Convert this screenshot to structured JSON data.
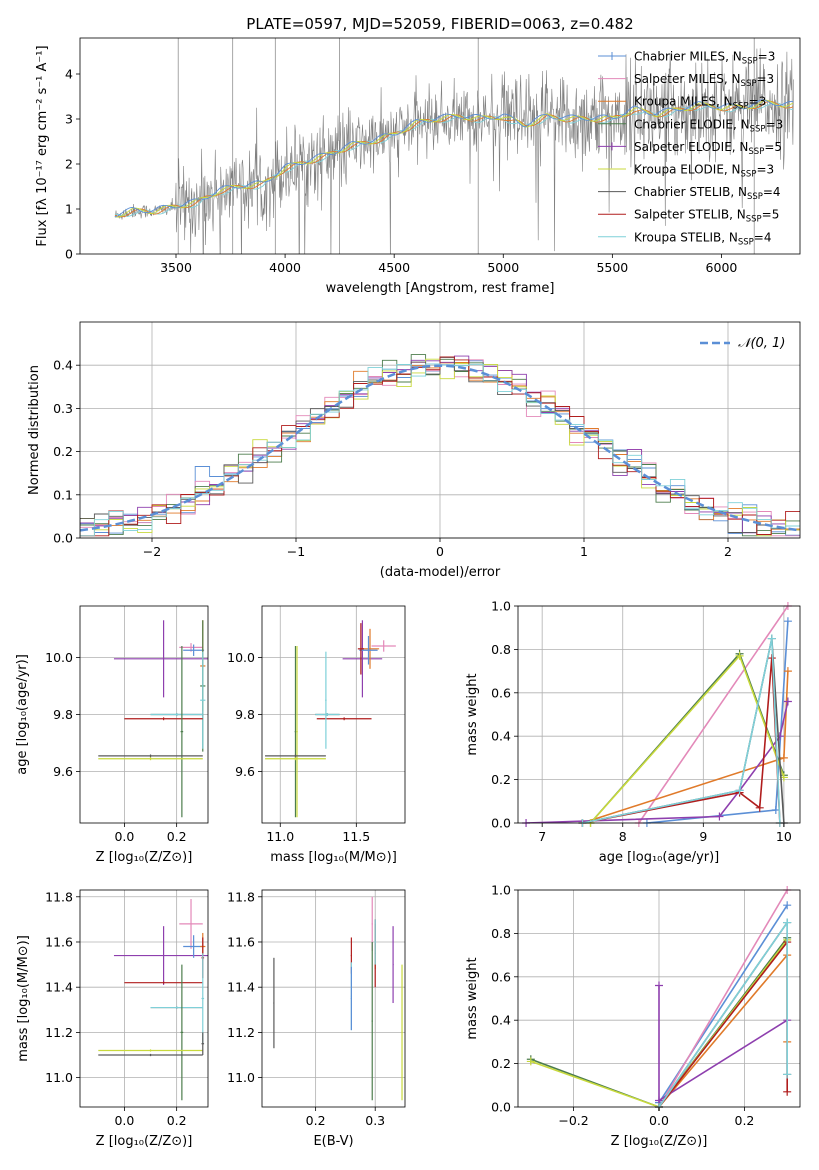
{
  "figure": {
    "title": "PLATE=0597, MJD=52059, FIBERID=0063, z=0.482"
  },
  "colors": {
    "chabrier_miles": "#5b8fd6",
    "salpeter_miles": "#e389b9",
    "kroupa_miles": "#e07a2a",
    "chabrier_elodie": "#4d7d4d",
    "salpeter_elodie": "#8e3fae",
    "kroupa_elodie": "#c8d93c",
    "chabrier_stelib": "#5a5a5a",
    "salpeter_stelib": "#b01d1d",
    "kroupa_stelib": "#7fd0d8",
    "data_spectrum": "#808080",
    "normal_curve": "#5b8fd6"
  },
  "legend_spectrum": [
    {
      "base": "Chabrier MILES, N",
      "sub": "SSP",
      "tail": "=3",
      "color_key": "chabrier_miles",
      "marker": true
    },
    {
      "base": "Salpeter MILES, N",
      "sub": "SSP",
      "tail": "=3",
      "color_key": "salpeter_miles",
      "marker": false
    },
    {
      "base": "Kroupa MILES, N",
      "sub": "SSP",
      "tail": "=3",
      "color_key": "kroupa_miles",
      "marker": false
    },
    {
      "base": "Chabrier ELODIE, N",
      "sub": "SSP",
      "tail": "=3",
      "color_key": "chabrier_elodie",
      "marker": false
    },
    {
      "base": "Salpeter ELODIE, N",
      "sub": "SSP",
      "tail": "=5",
      "color_key": "salpeter_elodie",
      "marker": true
    },
    {
      "base": "Kroupa ELODIE, N",
      "sub": "SSP",
      "tail": "=3",
      "color_key": "kroupa_elodie",
      "marker": false
    },
    {
      "base": "Chabrier STELIB, N",
      "sub": "SSP",
      "tail": "=4",
      "color_key": "chabrier_stelib",
      "marker": false
    },
    {
      "base": "Salpeter STELIB, N",
      "sub": "SSP",
      "tail": "=5",
      "color_key": "salpeter_stelib",
      "marker": false
    },
    {
      "base": "Kroupa STELIB, N",
      "sub": "SSP",
      "tail": "=4",
      "color_key": "kroupa_stelib",
      "marker": false
    }
  ],
  "chart_data": [
    {
      "id": "spectrum",
      "type": "line",
      "xlabel": "wavelength [Angstrom, rest frame]",
      "ylabel": "Flux [fλ 10⁻¹⁷ erg cm⁻² s⁻¹ A⁻¹]",
      "xlim": [
        3060,
        6360
      ],
      "ylim": [
        0,
        4.8
      ],
      "xticks": [
        3500,
        4000,
        4500,
        5000,
        5500,
        6000
      ],
      "yticks": [
        0,
        1,
        2,
        3,
        4
      ],
      "continuum": {
        "x": [
          3220,
          3300,
          3400,
          3500,
          3600,
          3700,
          3800,
          3900,
          4000,
          4100,
          4200,
          4300,
          4400,
          4500,
          4600,
          4700,
          4800,
          4900,
          5000,
          5100,
          5200,
          5300,
          5400,
          5500,
          5600,
          5700,
          5800,
          5900,
          6000,
          6100,
          6200,
          6330
        ],
        "y": [
          0.85,
          0.95,
          0.95,
          1.05,
          1.15,
          1.4,
          1.5,
          1.55,
          1.9,
          2.05,
          2.2,
          2.4,
          2.5,
          2.65,
          2.9,
          3.0,
          3.05,
          3.0,
          3.05,
          2.85,
          3.05,
          3.0,
          3.0,
          3.0,
          3.2,
          3.1,
          3.2,
          3.3,
          3.25,
          3.25,
          3.35,
          3.3
        ]
      },
      "data_xrange": [
        3220,
        6330
      ],
      "sky_line_x": [
        3510,
        3760,
        3955,
        4250,
        4885,
        6150
      ]
    },
    {
      "id": "residuals",
      "type": "histogram",
      "xlabel": "(data-model)/error",
      "ylabel": "Normed distribution",
      "xlim": [
        -2.5,
        2.5
      ],
      "ylim": [
        0,
        0.5
      ],
      "xticks": [
        -2,
        -1,
        0,
        1,
        2
      ],
      "yticks": [
        0.0,
        0.1,
        0.2,
        0.3,
        0.4
      ],
      "bin_width": 0.1,
      "curve_label": "𝒩(0, 1)"
    },
    {
      "id": "age_vs_Z",
      "type": "errorbar",
      "xlabel": "Z [log₁₀(Z/Z⊙)]",
      "ylabel": "age  [log₁₀(age/yr)]",
      "xlim": [
        -0.17,
        0.32
      ],
      "ylim": [
        9.42,
        10.18
      ],
      "xticks": [
        0.0,
        0.2
      ],
      "yticks": [
        9.6,
        9.8,
        10.0
      ],
      "points": [
        {
          "series": "salpeter_elodie",
          "x": 0.15,
          "xerr": 0.19,
          "y": 9.995,
          "yerr": 0.135
        },
        {
          "series": "salpeter_miles",
          "x": 0.255,
          "xerr": 0.045,
          "y": 10.035,
          "yerr": 0.015
        },
        {
          "series": "chabrier_miles",
          "x": 0.265,
          "xerr": 0.04,
          "y": 10.025,
          "yerr": 0.02
        },
        {
          "series": "kroupa_miles",
          "x": 0.3,
          "xerr": 0.01,
          "y": 9.97,
          "yerr": 0.16
        },
        {
          "series": "chabrier_elodie",
          "x": 0.3,
          "xerr": 0.01,
          "y": 9.9,
          "yerr": 0.23
        },
        {
          "series": "kroupa_stelib",
          "x": 0.3,
          "xerr": 0.01,
          "y": 9.85,
          "yerr": 0.17
        },
        {
          "series": "chabrier_stelib",
          "x": 0.2,
          "xerr": 0.1,
          "y": 9.8,
          "yerr": 0.005
        },
        {
          "series": "kroupa_stelib",
          "x": 0.2,
          "xerr": 0.1,
          "y": 9.8,
          "yerr": 0.005
        },
        {
          "series": "salpeter_stelib",
          "x": 0.15,
          "xerr": 0.15,
          "y": 9.785,
          "yerr": 0.005
        },
        {
          "series": "chabrier_elodie",
          "x": 0.22,
          "xerr": 0.005,
          "y": 9.74,
          "yerr": 0.3
        },
        {
          "series": "chabrier_stelib",
          "x": 0.1,
          "xerr": 0.2,
          "y": 9.655,
          "yerr": 0.005
        },
        {
          "series": "kroupa_elodie",
          "x": 0.1,
          "xerr": 0.2,
          "y": 9.645,
          "yerr": 0.005
        }
      ]
    },
    {
      "id": "age_vs_mass",
      "type": "errorbar",
      "xlabel": "mass [log₁₀(M/M⊙)]",
      "ylabel": "",
      "xlim": [
        10.88,
        11.82
      ],
      "ylim": [
        9.42,
        10.18
      ],
      "xticks": [
        11.0,
        11.5
      ],
      "yticks": [
        9.6,
        9.8,
        10.0
      ],
      "points": [
        {
          "series": "salpeter_elodie",
          "x": 11.54,
          "xerr": 0.13,
          "y": 9.995,
          "yerr": 0.135
        },
        {
          "series": "salpeter_miles",
          "x": 11.68,
          "xerr": 0.08,
          "y": 10.04,
          "yerr": 0.02
        },
        {
          "series": "kroupa_miles",
          "x": 11.59,
          "xerr": 0.06,
          "y": 10.03,
          "yerr": 0.07
        },
        {
          "series": "chabrier_miles",
          "x": 11.58,
          "xerr": 0.06,
          "y": 10.025,
          "yerr": 0.05
        },
        {
          "series": "salpeter_stelib",
          "x": 11.53,
          "xerr": 0.02,
          "y": 10.03,
          "yerr": 0.09
        },
        {
          "series": "chabrier_stelib",
          "x": 11.31,
          "xerr": 0.08,
          "y": 9.8,
          "yerr": 0.005
        },
        {
          "series": "kroupa_stelib",
          "x": 11.31,
          "xerr": 0.08,
          "y": 9.8,
          "yerr": 0.005
        },
        {
          "series": "salpeter_stelib",
          "x": 11.42,
          "xerr": 0.18,
          "y": 9.785,
          "yerr": 0.005
        },
        {
          "series": "chabrier_elodie",
          "x": 11.1,
          "xerr": 0.005,
          "y": 9.74,
          "yerr": 0.3
        },
        {
          "series": "kroupa_elodie",
          "x": 11.11,
          "xerr": 0.005,
          "y": 9.74,
          "yerr": 0.3
        },
        {
          "series": "chabrier_stelib",
          "x": 11.1,
          "xerr": 0.2,
          "y": 9.655,
          "yerr": 0.005
        },
        {
          "series": "kroupa_elodie",
          "x": 11.1,
          "xerr": 0.2,
          "y": 9.645,
          "yerr": 0.005
        },
        {
          "series": "kroupa_stelib",
          "x": 11.3,
          "xerr": 0.005,
          "y": 9.85,
          "yerr": 0.17
        }
      ]
    },
    {
      "id": "mass_weight_vs_age",
      "type": "line",
      "xlabel": "age  [log₁₀(age/yr)]",
      "ylabel": "mass weight",
      "xlim": [
        6.7,
        10.2
      ],
      "ylim": [
        0,
        1.0
      ],
      "xticks": [
        7,
        8,
        9,
        10
      ],
      "yticks": [
        0.0,
        0.2,
        0.4,
        0.6,
        0.8,
        1.0
      ],
      "series": [
        {
          "series": "chabrier_miles",
          "x": [
            8.3,
            9.9,
            10.05
          ],
          "y": [
            0.0,
            0.06,
            0.93
          ]
        },
        {
          "series": "salpeter_miles",
          "x": [
            8.2,
            10.05
          ],
          "y": [
            0.0,
            1.0
          ]
        },
        {
          "series": "kroupa_miles",
          "x": [
            7.5,
            10.0,
            10.05
          ],
          "y": [
            0.0,
            0.3,
            0.7
          ]
        },
        {
          "series": "chabrier_elodie",
          "x": [
            7.6,
            9.45,
            10.0
          ],
          "y": [
            0.0,
            0.78,
            0.22
          ]
        },
        {
          "series": "salpeter_elodie",
          "x": [
            6.8,
            9.2,
            9.45,
            9.95,
            10.05
          ],
          "y": [
            0.0,
            0.03,
            0.15,
            0.4,
            0.56
          ]
        },
        {
          "series": "kroupa_elodie",
          "x": [
            7.6,
            9.45,
            10.0
          ],
          "y": [
            0.0,
            0.77,
            0.21
          ]
        },
        {
          "series": "chabrier_stelib",
          "x": [
            7.5,
            9.45,
            9.85,
            10.0
          ],
          "y": [
            0.0,
            0.15,
            0.85,
            0.0
          ]
        },
        {
          "series": "salpeter_stelib",
          "x": [
            7.5,
            9.45,
            9.7,
            9.85,
            9.95
          ],
          "y": [
            0.0,
            0.14,
            0.07,
            0.76,
            0.0
          ]
        },
        {
          "series": "kroupa_stelib",
          "x": [
            7.5,
            9.45,
            9.85,
            9.95
          ],
          "y": [
            0.0,
            0.15,
            0.85,
            0.0
          ]
        }
      ]
    },
    {
      "id": "mass_vs_Z",
      "type": "errorbar",
      "xlabel": "Z [log₁₀(Z/Z⊙)]",
      "ylabel": "mass [log₁₀(M/M⊙)]",
      "xlim": [
        -0.17,
        0.32
      ],
      "ylim": [
        10.87,
        11.83
      ],
      "xticks": [
        0.0,
        0.2
      ],
      "yticks": [
        11.0,
        11.2,
        11.4,
        11.6,
        11.8
      ],
      "points": [
        {
          "series": "salpeter_elodie",
          "x": 0.15,
          "xerr": 0.19,
          "y": 11.54,
          "yerr": 0.13
        },
        {
          "series": "salpeter_miles",
          "x": 0.255,
          "xerr": 0.045,
          "y": 11.68,
          "yerr": 0.11
        },
        {
          "series": "chabrier_miles",
          "x": 0.265,
          "xerr": 0.04,
          "y": 11.58,
          "yerr": 0.05
        },
        {
          "series": "kroupa_miles",
          "x": 0.3,
          "xerr": 0.01,
          "y": 11.58,
          "yerr": 0.06
        },
        {
          "series": "salpeter_stelib",
          "x": 0.3,
          "xerr": 0.005,
          "y": 11.53,
          "yerr": 0.09
        },
        {
          "series": "salpeter_stelib",
          "x": 0.15,
          "xerr": 0.15,
          "y": 11.42,
          "yerr": 0.005
        },
        {
          "series": "chabrier_stelib",
          "x": 0.2,
          "xerr": 0.1,
          "y": 11.31,
          "yerr": 0.005
        },
        {
          "series": "kroupa_stelib",
          "x": 0.2,
          "xerr": 0.1,
          "y": 11.31,
          "yerr": 0.005
        },
        {
          "series": "kroupa_stelib",
          "x": 0.3,
          "xerr": 0.005,
          "y": 11.35,
          "yerr": 0.2
        },
        {
          "series": "chabrier_elodie",
          "x": 0.22,
          "xerr": 0.005,
          "y": 11.2,
          "yerr": 0.3
        },
        {
          "series": "kroupa_elodie",
          "x": 0.1,
          "xerr": 0.2,
          "y": 11.12,
          "yerr": 0.005
        },
        {
          "series": "chabrier_stelib",
          "x": 0.1,
          "xerr": 0.2,
          "y": 11.1,
          "yerr": 0.005
        },
        {
          "series": "chabrier_stelib",
          "x": 0.3,
          "xerr": 0.005,
          "y": 11.15,
          "yerr": 0.05
        }
      ]
    },
    {
      "id": "mass_vs_ebv",
      "type": "errorbar",
      "xlabel": "E(B-V)",
      "ylabel": "",
      "xlim": [
        0.11,
        0.35
      ],
      "ylim": [
        10.87,
        11.83
      ],
      "xticks": [
        0.2,
        0.3
      ],
      "yticks": [
        11.0,
        11.2,
        11.4,
        11.6,
        11.8
      ],
      "points": [
        {
          "series": "chabrier_stelib",
          "x": 0.13,
          "xerr": 0.001,
          "y": 11.33,
          "yerr": 0.2
        },
        {
          "series": "salpeter_stelib",
          "x": 0.26,
          "xerr": 0.001,
          "y": 11.54,
          "yerr": 0.08
        },
        {
          "series": "kroupa_stelib",
          "x": 0.26,
          "xerr": 0.001,
          "y": 11.36,
          "yerr": 0.15
        },
        {
          "series": "chabrier_miles",
          "x": 0.26,
          "xerr": 0.001,
          "y": 11.35,
          "yerr": 0.14
        },
        {
          "series": "salpeter_miles",
          "x": 0.295,
          "xerr": 0.001,
          "y": 11.68,
          "yerr": 0.12
        },
        {
          "series": "kroupa_miles",
          "x": 0.3,
          "xerr": 0.001,
          "y": 11.58,
          "yerr": 0.1
        },
        {
          "series": "chabrier_elodie",
          "x": 0.295,
          "xerr": 0.001,
          "y": 11.25,
          "yerr": 0.35
        },
        {
          "series": "salpeter_stelib",
          "x": 0.3,
          "xerr": 0.001,
          "y": 11.55,
          "yerr": 0.15
        },
        {
          "series": "kroupa_stelib",
          "x": 0.3,
          "xerr": 0.001,
          "y": 11.6,
          "yerr": 0.1
        },
        {
          "series": "salpeter_elodie",
          "x": 0.33,
          "xerr": 0.001,
          "y": 11.5,
          "yerr": 0.17
        },
        {
          "series": "kroupa_elodie",
          "x": 0.345,
          "xerr": 0.001,
          "y": 11.2,
          "yerr": 0.3
        }
      ]
    },
    {
      "id": "mass_weight_vs_Z",
      "type": "line",
      "xlabel": "Z [log₁₀(Z/Z⊙)]",
      "ylabel": "mass weight",
      "xlim": [
        -0.33,
        0.33
      ],
      "ylim": [
        0,
        1.0
      ],
      "xticks": [
        -0.2,
        0.0,
        0.2
      ],
      "yticks": [
        0.0,
        0.2,
        0.4,
        0.6,
        0.8,
        1.0
      ],
      "series": [
        {
          "series": "chabrier_miles",
          "x": [
            0.0,
            0.3
          ],
          "y": [
            0.02,
            0.93
          ]
        },
        {
          "series": "salpeter_miles",
          "x": [
            0.0,
            0.3
          ],
          "y": [
            0.0,
            1.0
          ]
        },
        {
          "series": "kroupa_miles",
          "x": [
            0.0,
            0.3,
            0.3
          ],
          "y": [
            0.0,
            0.7,
            0.3
          ]
        },
        {
          "series": "chabrier_elodie",
          "x": [
            -0.3,
            0.0,
            0.3
          ],
          "y": [
            0.22,
            0.0,
            0.78
          ]
        },
        {
          "series": "salpeter_elodie",
          "x": [
            0.0,
            0.0,
            0.0,
            0.3
          ],
          "y": [
            0.56,
            0.0,
            0.03,
            0.4
          ]
        },
        {
          "series": "kroupa_elodie",
          "x": [
            -0.3,
            0.0,
            0.3
          ],
          "y": [
            0.21,
            0.0,
            0.77
          ]
        },
        {
          "series": "chabrier_stelib",
          "x": [
            0.0,
            0.3,
            0.3
          ],
          "y": [
            0.0,
            0.85,
            0.15
          ]
        },
        {
          "series": "salpeter_stelib",
          "x": [
            0.0,
            0.3,
            0.3
          ],
          "y": [
            0.0,
            0.76,
            0.07
          ]
        },
        {
          "series": "kroupa_stelib",
          "x": [
            0.0,
            0.3,
            0.3
          ],
          "y": [
            0.0,
            0.85,
            0.15
          ]
        }
      ]
    }
  ]
}
